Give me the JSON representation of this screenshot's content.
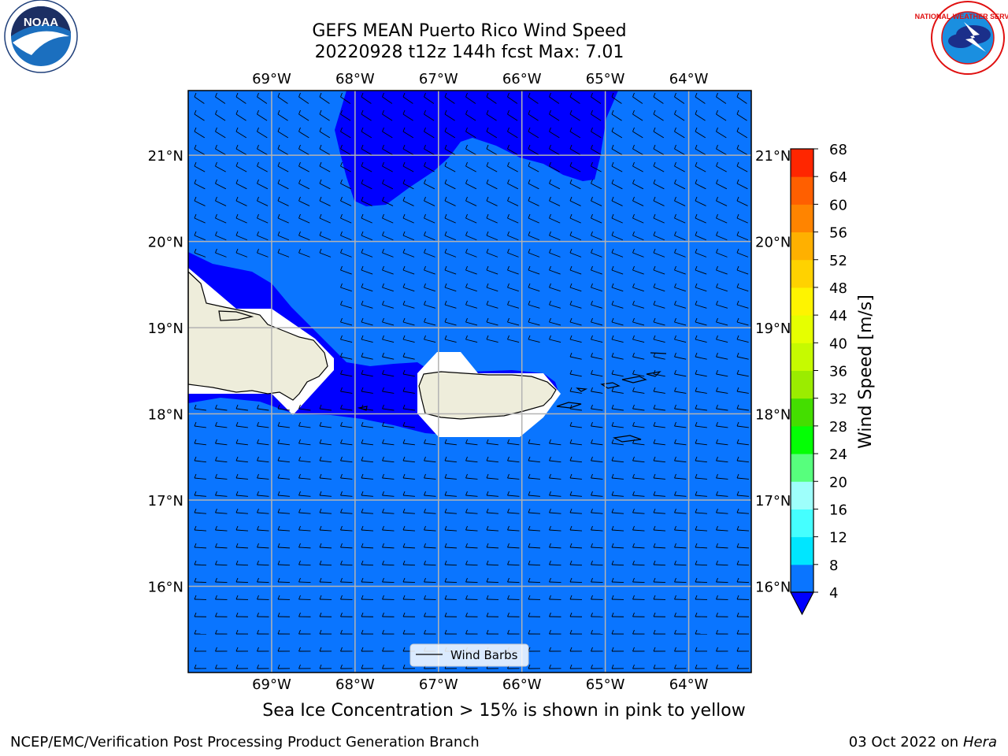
{
  "title": {
    "line1": "GEFS MEAN Puerto Rico Wind Speed",
    "line2": "20220928 t12z 144h fcst   Max: 7.01"
  },
  "logos": {
    "left": {
      "text": "NOAA",
      "icon": "noaa-logo-icon",
      "ring_text": "NATIONAL OCEANIC AND ATMOSPHERIC ADMINISTRATION · U.S. DEPARTMENT OF COMMERCE"
    },
    "right": {
      "icon": "nws-logo-icon",
      "ring_text": "NATIONAL WEATHER SERVICE"
    }
  },
  "map": {
    "lon_ticks": [
      "69°W",
      "68°W",
      "67°W",
      "66°W",
      "65°W",
      "64°W"
    ],
    "lat_ticks": [
      "21°N",
      "20°N",
      "19°N",
      "18°N",
      "17°N",
      "16°N"
    ],
    "lon_values": [
      -69,
      -68,
      -67,
      -66,
      -65,
      -64
    ],
    "lat_values": [
      21,
      20,
      19,
      18,
      17,
      16
    ],
    "extent": {
      "lon": [
        -70.0,
        -63.25
      ],
      "lat": [
        15.0,
        21.75
      ]
    },
    "legend_label": "Wind Barbs",
    "colors": {
      "ocean": "#0a75ff",
      "calm": "#0000ff",
      "land": "#eeeddb",
      "grid": "#b3b3b3"
    }
  },
  "colorbar": {
    "label": "Wind Speed [m/s]",
    "levels": [
      4,
      8,
      12,
      16,
      20,
      24,
      28,
      32,
      36,
      40,
      44,
      48,
      52,
      56,
      60,
      64,
      68
    ],
    "colors": [
      "#0a75ff",
      "#00e6ff",
      "#45ffff",
      "#9efffb",
      "#57ff7d",
      "#04ff05",
      "#44de00",
      "#9bec00",
      "#c6fa00",
      "#e6ff00",
      "#fef400",
      "#ffd200",
      "#ffb000",
      "#ff8400",
      "#ff5f00",
      "#ff2600"
    ],
    "extend_color": "#0000ff"
  },
  "caption": "Sea Ice Concentration > 15% is shown in pink to yellow",
  "footer": {
    "left": "NCEP/EMC/Verification Post Processing Product Generation Branch",
    "right_date": "03 Oct 2022 on ",
    "right_host": "Hera"
  }
}
